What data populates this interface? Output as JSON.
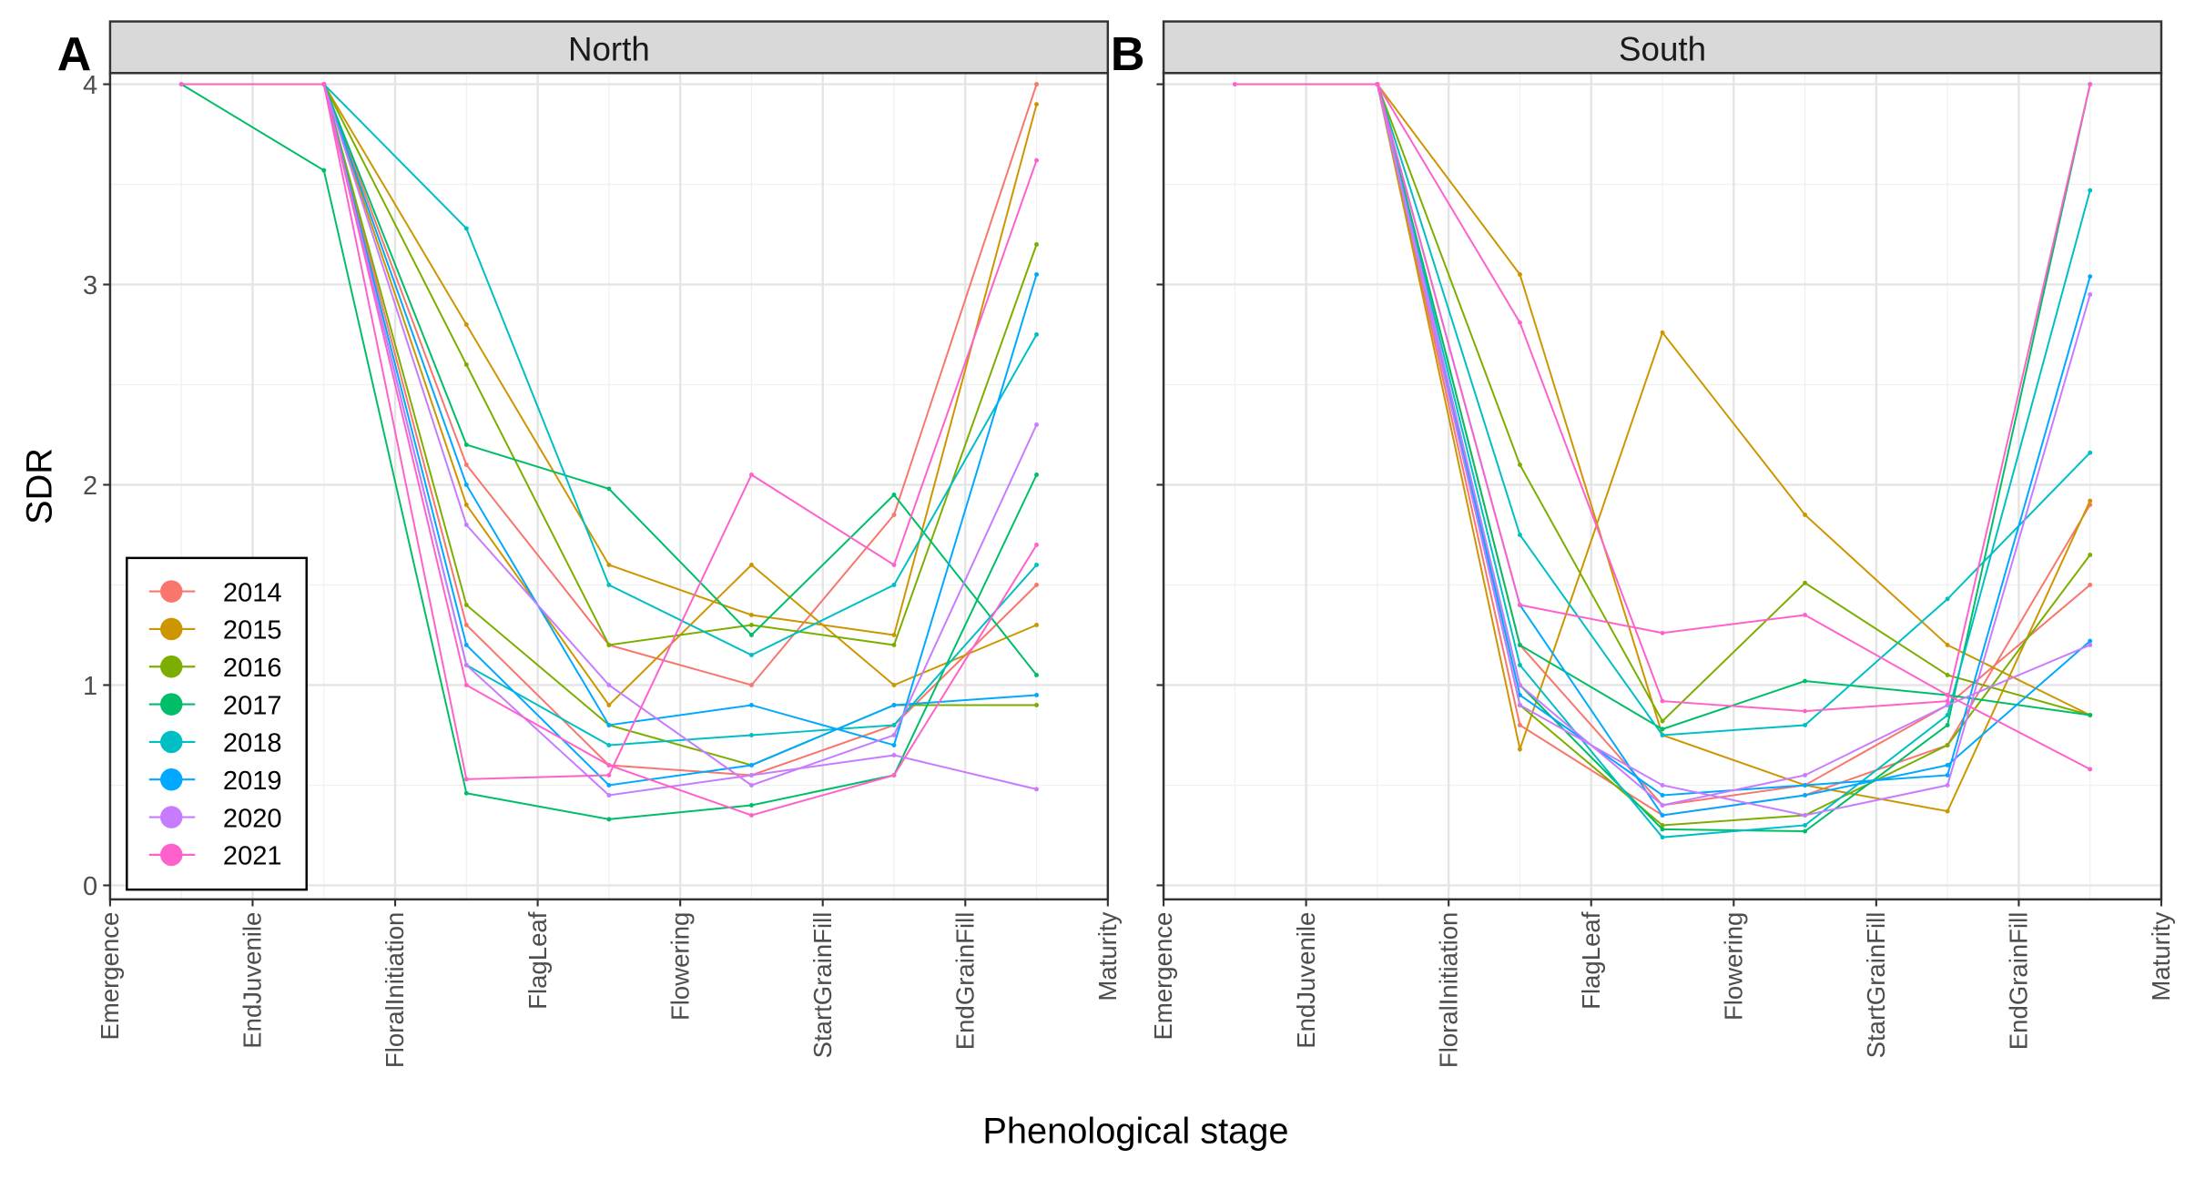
{
  "chart_data": [
    {
      "type": "line",
      "panel_label": "A",
      "title": "North",
      "ylabel": "SDR",
      "xlabel": "Phenological stage",
      "legend": "bottom-left",
      "grid": true,
      "show_ytick_labels": true,
      "x": [
        1.5,
        2.5,
        3.5,
        4.5,
        5.5,
        6.5,
        7.5
      ],
      "xlim": [
        1,
        8
      ],
      "xticks": [
        {
          "value": 1,
          "label": "Emergence"
        },
        {
          "value": 2,
          "label": "EndJuvenile"
        },
        {
          "value": 3,
          "label": "FloralInitiation"
        },
        {
          "value": 4,
          "label": "FlagLeaf"
        },
        {
          "value": 5,
          "label": "Flowering"
        },
        {
          "value": 6,
          "label": "StartGrainFill"
        },
        {
          "value": 7,
          "label": "EndGrainFill"
        },
        {
          "value": 8,
          "label": "Maturity"
        }
      ],
      "ylim": [
        -0.07,
        4.056
      ],
      "yticks": [
        0,
        1,
        2,
        3,
        4
      ],
      "series": [
        {
          "name": "2014",
          "color": "#F8766D",
          "values": [
            null,
            4,
            2.1,
            1.2,
            1.0,
            1.85,
            4.0
          ]
        },
        {
          "name": "2014",
          "color": "#F8766D",
          "values": [
            null,
            4,
            1.3,
            0.6,
            0.55,
            0.8,
            1.5
          ]
        },
        {
          "name": "2015",
          "color": "#CD9600",
          "values": [
            null,
            4,
            2.8,
            1.6,
            1.35,
            1.25,
            3.9
          ]
        },
        {
          "name": "2015",
          "color": "#CD9600",
          "values": [
            null,
            4,
            1.9,
            0.9,
            1.6,
            1.0,
            1.3
          ]
        },
        {
          "name": "2016",
          "color": "#7CAE00",
          "values": [
            null,
            4,
            2.6,
            1.2,
            1.3,
            1.2,
            3.2
          ]
        },
        {
          "name": "2016",
          "color": "#7CAE00",
          "values": [
            null,
            4,
            1.4,
            0.8,
            0.6,
            0.9,
            0.9
          ]
        },
        {
          "name": "2017",
          "color": "#00BE67",
          "values": [
            4,
            3.57,
            0.46,
            0.33,
            0.4,
            0.55,
            2.05
          ]
        },
        {
          "name": "2017",
          "color": "#00BE67",
          "values": [
            null,
            4,
            2.2,
            1.98,
            1.25,
            1.95,
            1.05
          ]
        },
        {
          "name": "2018",
          "color": "#00BFC4",
          "values": [
            null,
            4,
            3.28,
            1.5,
            1.15,
            1.5,
            2.75
          ]
        },
        {
          "name": "2018",
          "color": "#00BFC4",
          "values": [
            null,
            4,
            1.1,
            0.7,
            0.75,
            0.8,
            1.6
          ]
        },
        {
          "name": "2019",
          "color": "#00A9FF",
          "values": [
            null,
            4,
            2.0,
            0.8,
            0.9,
            0.7,
            3.05
          ]
        },
        {
          "name": "2019",
          "color": "#00A9FF",
          "values": [
            null,
            4,
            1.2,
            0.5,
            0.6,
            0.9,
            0.95
          ]
        },
        {
          "name": "2020",
          "color": "#C77CFF",
          "values": [
            null,
            4,
            1.8,
            1.0,
            0.5,
            0.75,
            2.3
          ]
        },
        {
          "name": "2020",
          "color": "#C77CFF",
          "values": [
            null,
            4,
            1.1,
            0.45,
            0.55,
            0.65,
            0.48
          ]
        },
        {
          "name": "2021",
          "color": "#FF61CC",
          "values": [
            4,
            4,
            0.53,
            0.55,
            2.05,
            1.6,
            3.62
          ]
        },
        {
          "name": "2021",
          "color": "#FF61CC",
          "values": [
            null,
            4,
            1.0,
            0.6,
            0.35,
            0.55,
            1.7
          ]
        }
      ]
    },
    {
      "type": "line",
      "panel_label": "B",
      "title": "South",
      "grid": true,
      "show_ytick_labels": false,
      "x": [
        1.5,
        2.5,
        3.5,
        4.5,
        5.5,
        6.5,
        7.5
      ],
      "xlim": [
        1,
        8
      ],
      "xticks": [
        {
          "value": 1,
          "label": "Emergence"
        },
        {
          "value": 2,
          "label": "EndJuvenile"
        },
        {
          "value": 3,
          "label": "FloralInitiation"
        },
        {
          "value": 4,
          "label": "FlagLeaf"
        },
        {
          "value": 5,
          "label": "Flowering"
        },
        {
          "value": 6,
          "label": "StartGrainFill"
        },
        {
          "value": 7,
          "label": "EndGrainFill"
        },
        {
          "value": 8,
          "label": "Maturity"
        }
      ],
      "ylim": [
        -0.07,
        4.056
      ],
      "yticks": [
        0,
        1,
        2,
        3,
        4
      ],
      "series": [
        {
          "name": "2014",
          "color": "#F8766D",
          "values": [
            null,
            4,
            1.2,
            0.4,
            0.5,
            0.9,
            1.5
          ]
        },
        {
          "name": "2014",
          "color": "#F8766D",
          "values": [
            null,
            4,
            0.8,
            0.35,
            0.45,
            0.7,
            1.9
          ]
        },
        {
          "name": "2015",
          "color": "#CD9600",
          "values": [
            null,
            4,
            3.05,
            0.75,
            0.5,
            0.37,
            1.92
          ]
        },
        {
          "name": "2015",
          "color": "#CD9600",
          "values": [
            null,
            4,
            0.68,
            2.76,
            1.85,
            1.2,
            0.85
          ]
        },
        {
          "name": "2016",
          "color": "#7CAE00",
          "values": [
            null,
            4,
            2.1,
            0.82,
            1.51,
            1.05,
            0.85
          ]
        },
        {
          "name": "2016",
          "color": "#7CAE00",
          "values": [
            null,
            4,
            0.9,
            0.3,
            0.35,
            0.7,
            1.65
          ]
        },
        {
          "name": "2017",
          "color": "#00BE67",
          "values": [
            null,
            4,
            1.2,
            0.78,
            1.02,
            0.95,
            0.85
          ]
        },
        {
          "name": "2017",
          "color": "#00BE67",
          "values": [
            null,
            4,
            1.0,
            0.28,
            0.27,
            0.8,
            4.0
          ]
        },
        {
          "name": "2018",
          "color": "#00BFC4",
          "values": [
            null,
            4,
            1.75,
            0.75,
            0.8,
            1.43,
            2.16
          ]
        },
        {
          "name": "2018",
          "color": "#00BFC4",
          "values": [
            null,
            4,
            1.1,
            0.24,
            0.3,
            0.85,
            3.47
          ]
        },
        {
          "name": "2019",
          "color": "#00A9FF",
          "values": [
            null,
            4,
            1.4,
            0.35,
            0.45,
            0.6,
            1.22
          ]
        },
        {
          "name": "2019",
          "color": "#00A9FF",
          "values": [
            null,
            4,
            0.95,
            0.45,
            0.5,
            0.55,
            3.04
          ]
        },
        {
          "name": "2020",
          "color": "#C77CFF",
          "values": [
            null,
            4,
            0.9,
            0.5,
            0.35,
            0.5,
            2.95
          ]
        },
        {
          "name": "2020",
          "color": "#C77CFF",
          "values": [
            null,
            4,
            1.0,
            0.4,
            0.55,
            0.9,
            1.2
          ]
        },
        {
          "name": "2021",
          "color": "#FF61CC",
          "values": [
            4,
            4,
            2.81,
            0.92,
            0.87,
            0.92,
            4.0
          ]
        },
        {
          "name": "2021",
          "color": "#FF61CC",
          "values": [
            null,
            4,
            1.4,
            1.26,
            1.35,
            0.95,
            0.58
          ]
        }
      ]
    }
  ]
}
